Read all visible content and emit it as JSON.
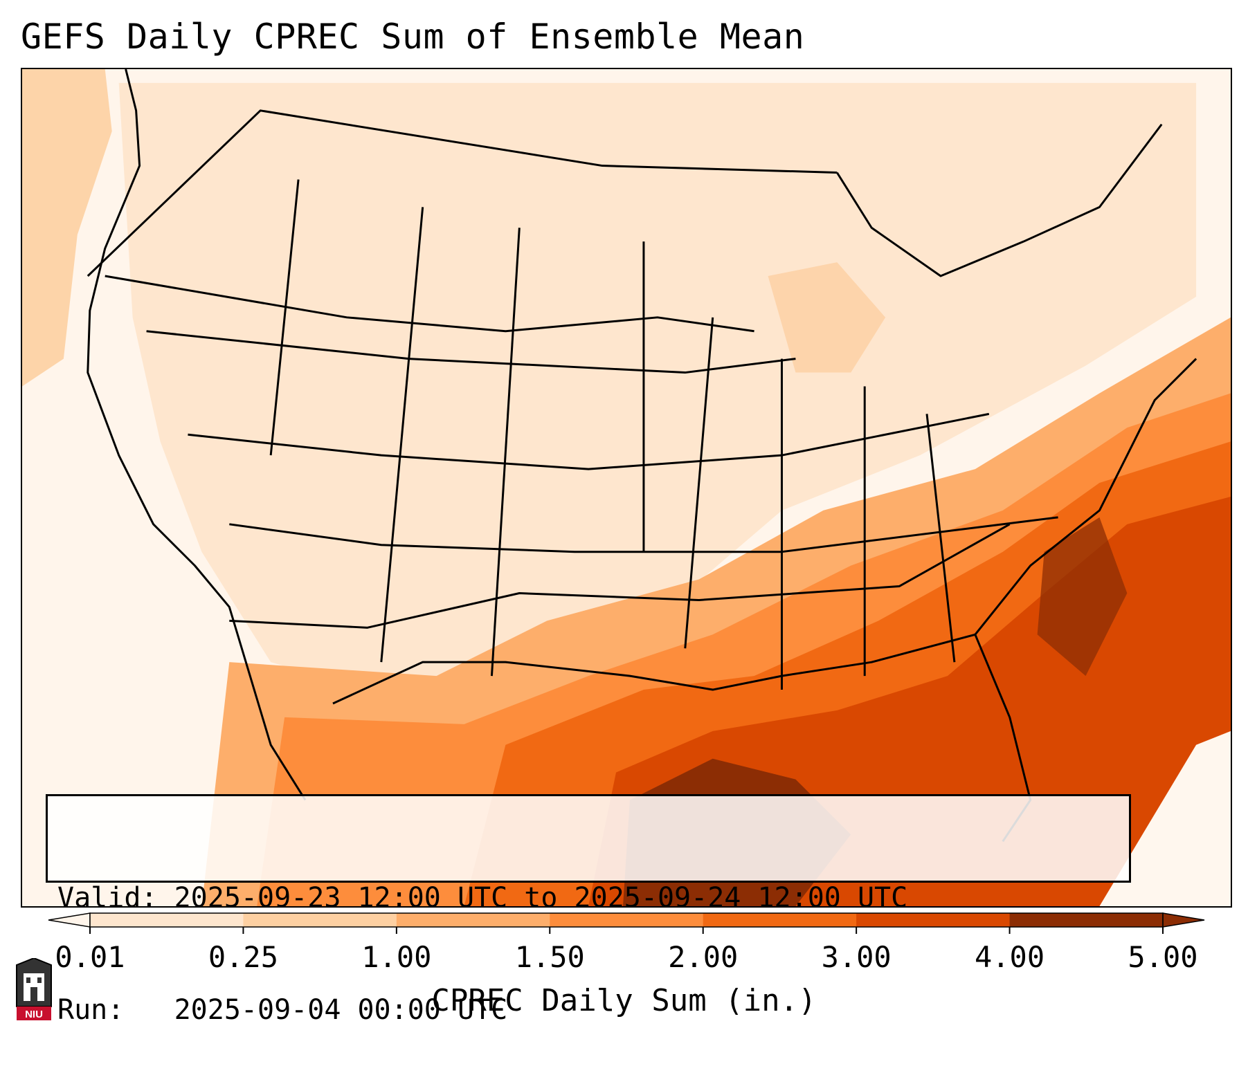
{
  "title": "GEFS Daily CPREC Sum of Ensemble Mean",
  "info": {
    "valid_line": "Valid: 2025-09-23 12:00 UTC to 2025-09-24 12:00 UTC",
    "run_line": "Run:   2025-09-04 00:00 UTC"
  },
  "colorbar": {
    "label": "CPREC Daily Sum (in.)",
    "ticks": [
      "0.01",
      "0.25",
      "1.00",
      "1.50",
      "2.00",
      "3.00",
      "4.00",
      "5.00"
    ],
    "colors": [
      "#fff5eb",
      "#fee6ce",
      "#fdd0a2",
      "#fdae6b",
      "#fd8d3c",
      "#f16913",
      "#d94801",
      "#8c2d04"
    ],
    "extend": "both"
  },
  "map": {
    "colors": {
      "background": "#fff7ee",
      "light": "#fee6ce",
      "light2": "#fdd0a2",
      "mid": "#fdae6b",
      "orange": "#fd8d3c",
      "dark_orange": "#f16913",
      "deep": "#d94801",
      "darkest": "#8c2d04",
      "border": "#000000"
    }
  },
  "logo": {
    "text": "NIU"
  }
}
